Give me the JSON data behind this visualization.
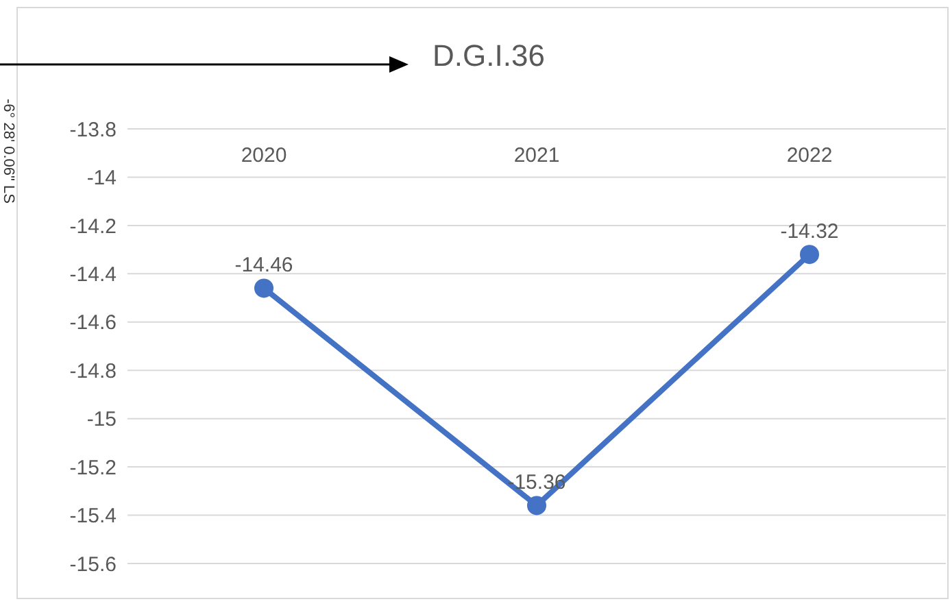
{
  "chart_data": {
    "type": "line",
    "title": "D.G.I.36",
    "annotations": [
      "-6° 28' 0.06\" LS"
    ],
    "categories": [
      "2020",
      "2021",
      "2022"
    ],
    "series": [
      {
        "color": "#4472c4",
        "values": [
          -14.46,
          -15.36,
          -14.32
        ]
      }
    ],
    "ylim": [
      -15.6,
      -13.8
    ],
    "yticks": [
      -13.8,
      -14,
      -14.2,
      -14.4,
      -14.6,
      -14.8,
      -15,
      -15.2,
      -15.4,
      -15.6
    ],
    "grid": "y",
    "marker": "circle",
    "data_labels": true,
    "legend": false
  }
}
